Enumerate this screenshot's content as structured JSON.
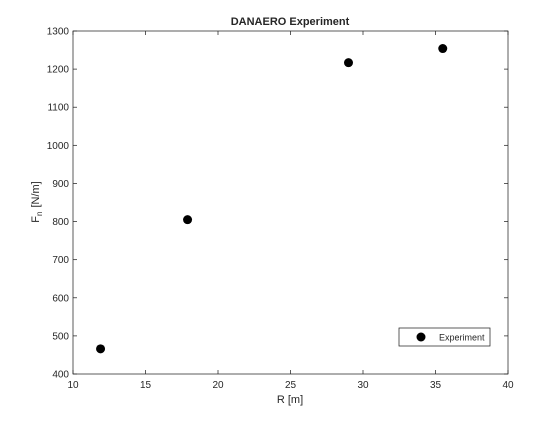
{
  "chart_data": {
    "type": "scatter",
    "title": "DANAERO Experiment",
    "xlabel": "R [m]",
    "ylabel_main": "F",
    "ylabel_sub": "n",
    "ylabel_units": "[N/m]",
    "xlim": [
      10,
      40
    ],
    "ylim": [
      400,
      1300
    ],
    "xticks": [
      "10",
      "15",
      "20",
      "25",
      "30",
      "35",
      "40"
    ],
    "yticks": [
      "400",
      "500",
      "600",
      "700",
      "800",
      "900",
      "1000",
      "1100",
      "1200",
      "1300"
    ],
    "grid": false,
    "legend_position": "bottom-right",
    "marker_color": "#000000",
    "series": [
      {
        "name": "Experiment",
        "points": [
          {
            "x": 11.9,
            "y": 466
          },
          {
            "x": 17.9,
            "y": 805
          },
          {
            "x": 29.0,
            "y": 1217
          },
          {
            "x": 35.5,
            "y": 1254
          }
        ]
      }
    ]
  }
}
